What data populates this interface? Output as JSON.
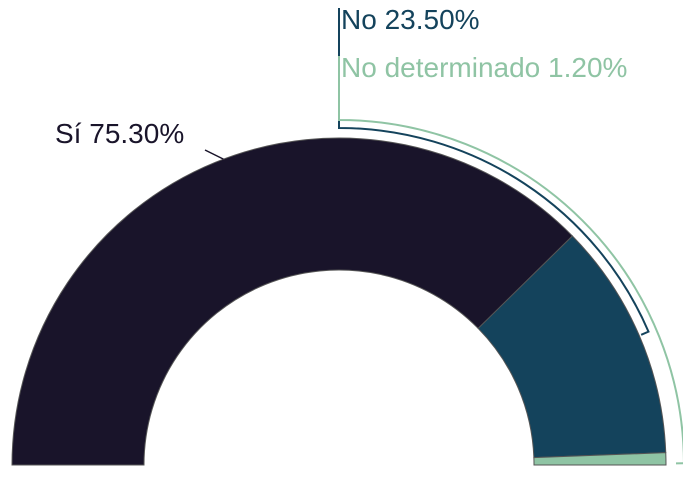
{
  "chart_data": {
    "type": "semi-donut",
    "categories": [
      "Sí",
      "No",
      "No determinado"
    ],
    "values": [
      75.3,
      23.5,
      1.2
    ],
    "value_labels": [
      "75.30%",
      "23.50%",
      "1.20%"
    ],
    "colors": [
      "#19142a",
      "#14435c",
      "#8fc4a4"
    ]
  }
}
